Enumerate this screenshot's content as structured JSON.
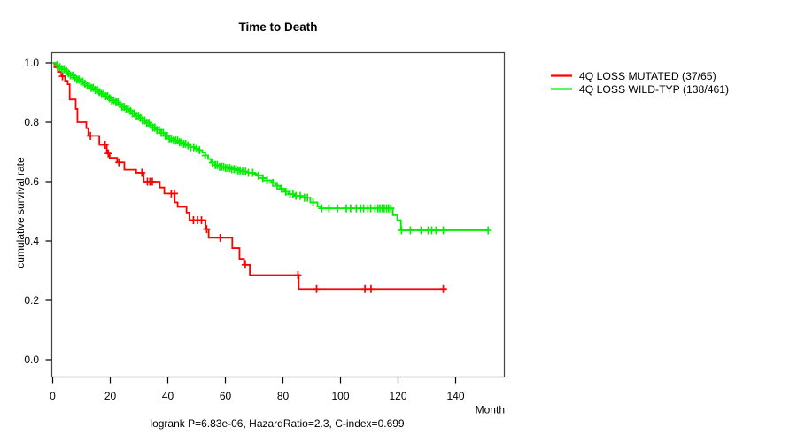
{
  "title": "Time to Death",
  "footer": {
    "stats": "logrank P=6.83e-06, HazardRatio=2.3, C-index=0.699"
  },
  "axes": {
    "x": {
      "label": "Month",
      "ticks": [
        0,
        20,
        40,
        60,
        80,
        100,
        120,
        140
      ]
    },
    "y": {
      "label": "cumulative survival rate",
      "ticks": [
        "0.0",
        "0.2",
        "0.4",
        "0.6",
        "0.8",
        "1.0"
      ]
    }
  },
  "legend": {
    "items": [
      {
        "key": "mutated",
        "label": "4Q LOSS MUTATED (37/65)",
        "color": "#ff0000"
      },
      {
        "key": "wildtype",
        "label": "4Q LOSS WILD-TYP (138/461)",
        "color": "#00ee00"
      }
    ]
  },
  "chart_data": {
    "type": "line",
    "subtype": "kaplan-meier-step",
    "title": "Time to Death",
    "xlabel": "Month",
    "ylabel": "cumulative survival rate",
    "xlim": [
      0,
      157
    ],
    "ylim": [
      0,
      1.0
    ],
    "x_ticks": [
      0,
      20,
      40,
      60,
      80,
      100,
      120,
      140
    ],
    "y_ticks": [
      0.0,
      0.2,
      0.4,
      0.6,
      0.8,
      1.0
    ],
    "grid": false,
    "legend_position": "right-outside",
    "annotation": "logrank P=6.83e-06, HazardRatio=2.3, C-index=0.699",
    "series": [
      {
        "key": "mutated",
        "name": "4Q LOSS MUTATED (37/65)",
        "events": 37,
        "total": 65,
        "color": "#ff0000",
        "end_month": 137,
        "steps": [
          [
            0,
            1.0
          ],
          [
            0.6,
            0.985
          ],
          [
            1.8,
            0.97
          ],
          [
            3.0,
            0.955
          ],
          [
            4.3,
            0.94
          ],
          [
            5.2,
            0.928
          ],
          [
            5.9,
            0.877
          ],
          [
            8.0,
            0.845
          ],
          [
            8.6,
            0.8
          ],
          [
            11.7,
            0.78
          ],
          [
            12.4,
            0.754
          ],
          [
            16.2,
            0.724
          ],
          [
            18.8,
            0.695
          ],
          [
            19.8,
            0.68
          ],
          [
            22.4,
            0.665
          ],
          [
            24.9,
            0.64
          ],
          [
            29.0,
            0.63
          ],
          [
            31.6,
            0.6
          ],
          [
            37.2,
            0.58
          ],
          [
            38.8,
            0.56
          ],
          [
            42.4,
            0.53
          ],
          [
            43.4,
            0.515
          ],
          [
            46.5,
            0.496
          ],
          [
            47.5,
            0.47
          ],
          [
            53.1,
            0.44
          ],
          [
            54.2,
            0.411
          ],
          [
            62.4,
            0.376
          ],
          [
            64.9,
            0.34
          ],
          [
            66.5,
            0.32
          ],
          [
            68.5,
            0.285
          ],
          [
            85.5,
            0.238
          ]
        ],
        "censor_marks": [
          3.4,
          13.1,
          18.2,
          19.3,
          23.0,
          31.0,
          32.9,
          33.8,
          34.6,
          41.2,
          42.3,
          48.9,
          50.3,
          51.7,
          53.5,
          58.2,
          66.9,
          85.2,
          91.7,
          108.5,
          110.6,
          135.7
        ]
      },
      {
        "key": "wildtype",
        "name": "4Q LOSS WILD-TYP (138/461)",
        "events": 138,
        "total": 461,
        "color": "#00ee00",
        "end_month": 151.3,
        "steps": [
          [
            0,
            1.0
          ],
          [
            1.2,
            0.993
          ],
          [
            2.2,
            0.986
          ],
          [
            3.2,
            0.979
          ],
          [
            4.2,
            0.972
          ],
          [
            5.2,
            0.965
          ],
          [
            6.2,
            0.958
          ],
          [
            7.2,
            0.951
          ],
          [
            8.4,
            0.944
          ],
          [
            9.6,
            0.937
          ],
          [
            10.8,
            0.93
          ],
          [
            12,
            0.923
          ],
          [
            13.2,
            0.916
          ],
          [
            14.4,
            0.909
          ],
          [
            15.6,
            0.902
          ],
          [
            16.8,
            0.895
          ],
          [
            18,
            0.888
          ],
          [
            19.2,
            0.881
          ],
          [
            20.4,
            0.874
          ],
          [
            21.6,
            0.867
          ],
          [
            22.8,
            0.86
          ],
          [
            24,
            0.852
          ],
          [
            25.2,
            0.845
          ],
          [
            26.4,
            0.838
          ],
          [
            27.6,
            0.83
          ],
          [
            28.8,
            0.822
          ],
          [
            30,
            0.814
          ],
          [
            31.2,
            0.806
          ],
          [
            32.4,
            0.798
          ],
          [
            33.6,
            0.79
          ],
          [
            34.8,
            0.782
          ],
          [
            36,
            0.774
          ],
          [
            37.5,
            0.764
          ],
          [
            39,
            0.754
          ],
          [
            40.5,
            0.745
          ],
          [
            42,
            0.738
          ],
          [
            43.5,
            0.732
          ],
          [
            45,
            0.727
          ],
          [
            46.5,
            0.722
          ],
          [
            48,
            0.716
          ],
          [
            49.5,
            0.711
          ],
          [
            51,
            0.706
          ],
          [
            52,
            0.698
          ],
          [
            53,
            0.688
          ],
          [
            54,
            0.676
          ],
          [
            55,
            0.664
          ],
          [
            56.5,
            0.656
          ],
          [
            58,
            0.65
          ],
          [
            60,
            0.646
          ],
          [
            62,
            0.642
          ],
          [
            64,
            0.638
          ],
          [
            66,
            0.634
          ],
          [
            68,
            0.63
          ],
          [
            70,
            0.626
          ],
          [
            71.5,
            0.62
          ],
          [
            73,
            0.612
          ],
          [
            74.5,
            0.604
          ],
          [
            76,
            0.596
          ],
          [
            77.5,
            0.586
          ],
          [
            79,
            0.576
          ],
          [
            80.5,
            0.566
          ],
          [
            82,
            0.558
          ],
          [
            84,
            0.552
          ],
          [
            86.5,
            0.546
          ],
          [
            89.5,
            0.53
          ],
          [
            92,
            0.516
          ],
          [
            93,
            0.51
          ],
          [
            118.2,
            0.487
          ],
          [
            119.7,
            0.47
          ],
          [
            121,
            0.436
          ]
        ],
        "censor_marks": [
          1.5,
          2.5,
          3.2,
          4.0,
          4.8,
          5.5,
          6.2,
          7.0,
          7.7,
          8.4,
          9.1,
          9.8,
          10.5,
          11.2,
          12.0,
          12.7,
          13.4,
          14.1,
          14.8,
          15.5,
          16.2,
          17.0,
          17.7,
          18.4,
          19.1,
          19.8,
          20.5,
          21.2,
          22.0,
          22.7,
          23.4,
          24.1,
          24.8,
          25.5,
          26.2,
          27.0,
          27.7,
          28.4,
          29.1,
          29.8,
          30.5,
          31.2,
          32.0,
          32.7,
          33.4,
          34.1,
          34.8,
          35.5,
          36.2,
          37.0,
          37.7,
          38.4,
          39.1,
          39.8,
          40.5,
          41.2,
          42.0,
          42.7,
          43.4,
          44.1,
          44.8,
          45.5,
          46.2,
          47.0,
          48.0,
          49.0,
          50.0,
          51.0,
          53.0,
          55.5,
          56.5,
          57.2,
          58.0,
          58.7,
          59.4,
          60.1,
          60.8,
          61.5,
          62.2,
          63.0,
          63.7,
          64.4,
          65.1,
          66.0,
          67.0,
          68.0,
          69.5,
          71.5,
          73.0,
          74.5,
          76.5,
          78.0,
          79.5,
          81.0,
          82.5,
          83.5,
          84.5,
          86.0,
          87.5,
          88.5,
          90.5,
          93.5,
          96.0,
          99.0,
          102.0,
          103.5,
          105.5,
          107.0,
          108.0,
          109.5,
          110.5,
          112.0,
          113.0,
          113.7,
          114.5,
          115.2,
          116.0,
          116.7,
          117.5,
          121.2,
          124.3,
          128.0,
          130.5,
          131.7,
          133.2,
          135.7,
          151.3
        ]
      }
    ]
  }
}
